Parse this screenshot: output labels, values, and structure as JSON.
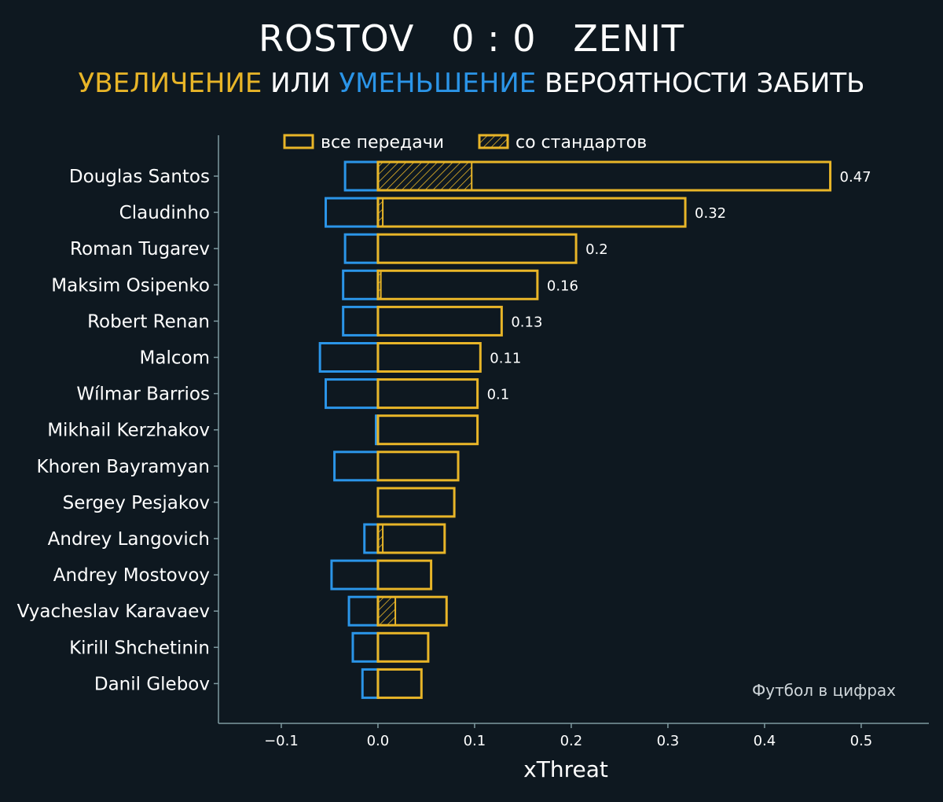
{
  "header": {
    "home_team": "ROSTOV",
    "score": "0 : 0",
    "away_team": "ZENIT",
    "subtitle_increase": "УВЕЛИЧЕНИЕ",
    "subtitle_or": " ИЛИ ",
    "subtitle_decrease": "УМЕНЬШЕНИЕ",
    "subtitle_rest": " ВЕРОЯТНОСТИ ЗАБИТЬ"
  },
  "colors": {
    "background": "#0e1820",
    "positive": "#e8b528",
    "negative": "#2b95e8",
    "axis": "#7f9aa0",
    "text": "#ffffff",
    "watermark": "#cfd6da"
  },
  "legend": {
    "all_passes": "все передачи",
    "set_pieces": "со стандартов"
  },
  "watermark": "Футбол в цифрах",
  "chart_data": {
    "type": "bar",
    "orientation": "horizontal",
    "xlabel": "xThreat",
    "xlim": [
      -0.165,
      0.57
    ],
    "xticks": [
      -0.1,
      0.0,
      0.1,
      0.2,
      0.3,
      0.4,
      0.5
    ],
    "xtick_labels": [
      "−0.1",
      "0.0",
      "0.1",
      "0.2",
      "0.3",
      "0.4",
      "0.5"
    ],
    "legend_position": "top",
    "categories": [
      "Douglas Santos",
      "Claudinho",
      "Roman Tugarev",
      "Maksim Osipenko",
      "Robert Renan",
      "Malcom",
      "Wílmar Barrios",
      "Mikhail Kerzhakov",
      "Khoren Bayramyan",
      "Sergey Pesjakov",
      "Andrey Langovich",
      "Andrey Mostovoy",
      "Vyacheslav Karavaev",
      "Kirill Shchetinin",
      "Danil Glebov"
    ],
    "series": [
      {
        "name": "все передачи",
        "style": "outline",
        "sign": "positive",
        "values": [
          0.468,
          0.318,
          0.205,
          0.165,
          0.128,
          0.106,
          0.103,
          0.103,
          0.083,
          0.079,
          0.069,
          0.055,
          0.071,
          0.052,
          0.045
        ]
      },
      {
        "name": "все передачи",
        "style": "outline",
        "sign": "negative",
        "values": [
          -0.034,
          -0.054,
          -0.034,
          -0.036,
          -0.036,
          -0.06,
          -0.054,
          -0.002,
          -0.045,
          0,
          -0.014,
          -0.048,
          -0.03,
          -0.026,
          -0.016
        ]
      },
      {
        "name": "со стандартов",
        "style": "hatched",
        "sign": "positive",
        "values": [
          0.097,
          0.005,
          0,
          0.003,
          0,
          0,
          0,
          0,
          0,
          0,
          0.005,
          0,
          0.018,
          0,
          0
        ]
      }
    ],
    "data_labels": [
      "0.47",
      "0.32",
      "0.2",
      "0.16",
      "0.13",
      "0.11",
      "0.1",
      "",
      "",
      "",
      "",
      "",
      "",
      "",
      ""
    ]
  }
}
